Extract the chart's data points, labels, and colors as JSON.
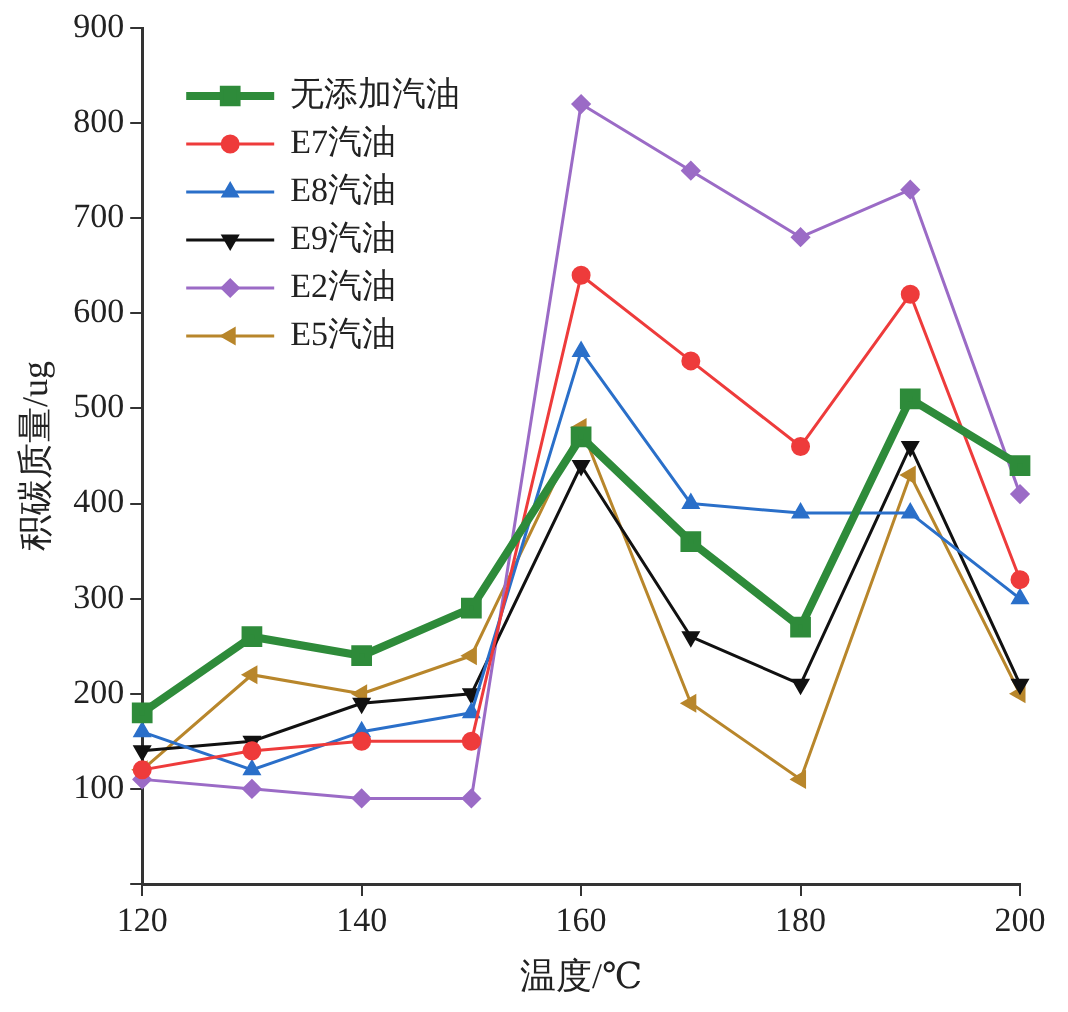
{
  "chart_data": {
    "type": "line",
    "xlabel": "温度/℃",
    "ylabel": "积碳质量/ug",
    "x": [
      120,
      130,
      140,
      150,
      160,
      170,
      180,
      190,
      200
    ],
    "xlim": [
      120,
      200
    ],
    "xticks": [
      120,
      140,
      160,
      180,
      200
    ],
    "ylim": [
      0,
      900
    ],
    "yticks": [
      {
        "value": 0,
        "label": null
      },
      100,
      200,
      300,
      400,
      500,
      600,
      700,
      800,
      900
    ],
    "grid": false,
    "legend": "top left",
    "line_style": "solid",
    "series": [
      {
        "name": "无添加汽油",
        "color": "#2e8b3a",
        "marker": "square",
        "values": [
          180,
          260,
          240,
          290,
          470,
          360,
          270,
          510,
          440
        ]
      },
      {
        "name": "E7汽油",
        "color": "#ee3b3b",
        "marker": "circle",
        "values": [
          120,
          140,
          150,
          150,
          640,
          550,
          460,
          620,
          320
        ]
      },
      {
        "name": "E8汽油",
        "color": "#2a6fc9",
        "marker": "triangle",
        "values": [
          160,
          120,
          160,
          180,
          560,
          400,
          390,
          390,
          300
        ]
      },
      {
        "name": "E9汽油",
        "color": "#111111",
        "marker": "triangle-down",
        "values": [
          140,
          150,
          190,
          200,
          440,
          260,
          210,
          460,
          210
        ]
      },
      {
        "name": "E2汽油",
        "color": "#9b6bc6",
        "marker": "diamond",
        "values": [
          110,
          100,
          90,
          90,
          820,
          750,
          680,
          730,
          410
        ]
      },
      {
        "name": "E5汽油",
        "color": "#b8862b",
        "marker": "triangle-left",
        "values": [
          120,
          220,
          200,
          240,
          480,
          190,
          110,
          430,
          200
        ]
      }
    ]
  }
}
